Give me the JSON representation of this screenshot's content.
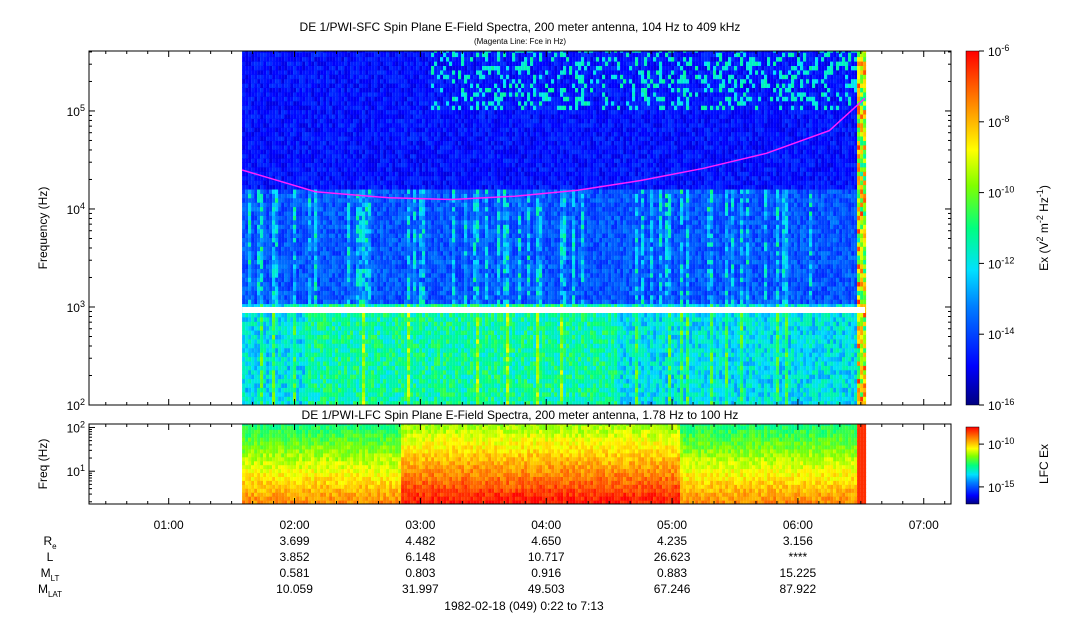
{
  "chart_data": [
    {
      "type": "heatmap",
      "title": "DE 1/PWI-SFC  Spin Plane E-Field Spectra, 200 meter antenna, 104 Hz to 409 kHz",
      "subtitle": "(Magenta Line: Fce in Hz)",
      "ylabel": "Frequency (Hz)",
      "yscale": "log",
      "ylim": [
        100,
        409000
      ],
      "y_ticks": [
        {
          "value": 100,
          "base": "10",
          "exp": "2"
        },
        {
          "value": 1000,
          "base": "10",
          "exp": "3"
        },
        {
          "value": 10000,
          "base": "10",
          "exp": "4"
        },
        {
          "value": 100000,
          "base": "10",
          "exp": "5"
        }
      ],
      "data_time_range": [
        "01:35",
        "06:32"
      ],
      "colorbar": {
        "label_parts": [
          "Ex (V",
          "2",
          " m",
          "-2",
          " Hz",
          "-1",
          ")"
        ],
        "scale": "log",
        "range": [
          1e-16,
          1e-06
        ],
        "ticks": [
          {
            "value": 1e-16,
            "base": "10",
            "exp": "-16"
          },
          {
            "value": 1e-14,
            "base": "10",
            "exp": "-14"
          },
          {
            "value": 1e-12,
            "base": "10",
            "exp": "-12"
          },
          {
            "value": 1e-10,
            "base": "10",
            "exp": "-10"
          },
          {
            "value": 1e-08,
            "base": "10",
            "exp": "-8"
          },
          {
            "value": 1e-06,
            "base": "10",
            "exp": "-6"
          }
        ]
      },
      "series": [
        {
          "color": "#ff20ff",
          "points": [
            {
              "t": "01:35",
              "f": 25000
            },
            {
              "t": "02:10",
              "f": 15000
            },
            {
              "t": "02:45",
              "f": 13000
            },
            {
              "t": "03:15",
              "f": 12500
            },
            {
              "t": "03:45",
              "f": 13500
            },
            {
              "t": "04:15",
              "f": 15500
            },
            {
              "t": "04:45",
              "f": 19500
            },
            {
              "t": "05:15",
              "f": 26000
            },
            {
              "t": "05:45",
              "f": 37000
            },
            {
              "t": "06:15",
              "f": 63000
            },
            {
              "t": "06:32",
              "f": 135000
            }
          ]
        }
      ]
    },
    {
      "type": "heatmap",
      "title": "DE 1/PWI-LFC  Spin Plane E-Field Spectra, 200 meter antenna, 1.78 Hz to 100 Hz",
      "ylabel": "Freq (Hz)",
      "yscale": "log",
      "ylim": [
        1.78,
        120
      ],
      "y_ticks": [
        {
          "value": 10,
          "base": "10",
          "exp": "1"
        },
        {
          "value": 100,
          "base": "10",
          "exp": "2"
        }
      ],
      "data_time_range": [
        "01:35",
        "06:32"
      ],
      "colorbar": {
        "label": "LFC Ex",
        "scale": "log",
        "range": [
          1e-17,
          1e-08
        ],
        "ticks": [
          {
            "value": 1e-15,
            "base": "10",
            "exp": "-15"
          },
          {
            "value": 1e-10,
            "base": "10",
            "exp": "-10"
          }
        ]
      }
    }
  ],
  "time_axis": {
    "range": [
      "00:22",
      "07:13"
    ],
    "tick_labels": [
      "01:00",
      "02:00",
      "03:00",
      "04:00",
      "05:00",
      "06:00",
      "07:00"
    ]
  },
  "ephemeris": {
    "rows": [
      {
        "name": "R",
        "sub": "e",
        "values": [
          "3.699",
          "4.482",
          "4.650",
          "4.235",
          "3.156"
        ]
      },
      {
        "name": "L",
        "sub": "",
        "values": [
          "3.852",
          "6.148",
          "10.717",
          "26.623",
          "****"
        ]
      },
      {
        "name": "M",
        "sub": "LT",
        "values": [
          "0.581",
          "0.803",
          "0.916",
          "0.883",
          "15.225"
        ]
      },
      {
        "name": "M",
        "sub": "LAT",
        "values": [
          "10.059",
          "31.997",
          "49.503",
          "67.246",
          "87.922"
        ]
      }
    ]
  },
  "footer": "1982-02-18 (049) 0:22 to 7:13"
}
